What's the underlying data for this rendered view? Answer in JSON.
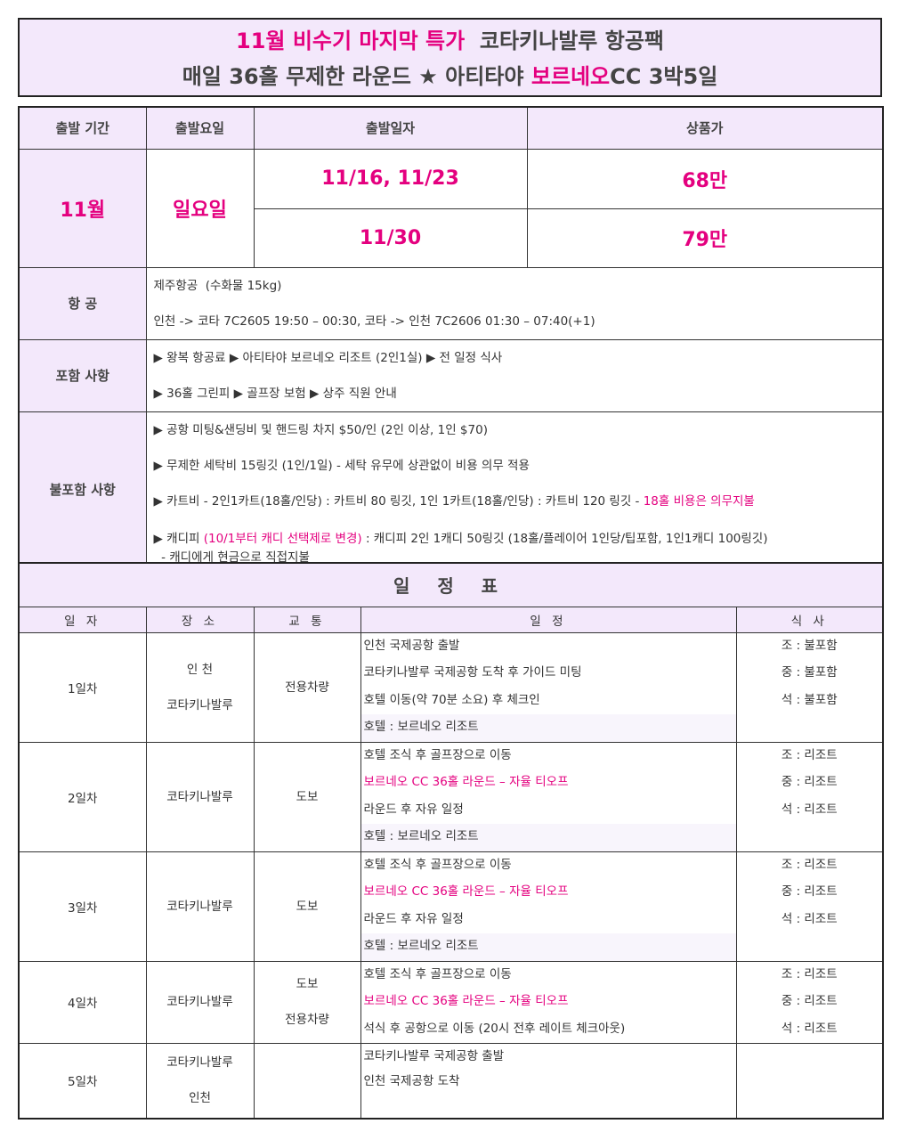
{
  "title": {
    "line1": [
      {
        "t": "11월 비수기 마지막 특가",
        "p": true
      },
      {
        "t": "  코타키나발루 항공팩",
        "p": false
      }
    ],
    "line2": [
      {
        "t": "매일 36홀 무제한 라운드 ★ 아티타야 ",
        "p": false
      },
      {
        "t": "보르네오",
        "p": true
      },
      {
        "t": "CC 3박5일",
        "p": false
      }
    ]
  },
  "headers": [
    "출발 기간",
    "출발요일",
    "출발일자",
    "상품가"
  ],
  "period": "11월",
  "weekday": "일요일",
  "departures": [
    {
      "dates": "11/16, 11/23",
      "price": "68만"
    },
    {
      "dates": "11/30",
      "price": "79만"
    }
  ],
  "sections": [
    {
      "label": "항 공",
      "lines": [
        [
          {
            "t": "제주항공  (수화물 15kg)",
            "p": false
          }
        ],
        [
          {
            "t": "인천 -> 코타 7C2605 19:50 – 00:30, 코타 -> 인천 7C2606 01:30 – 07:40(+1)",
            "p": false
          }
        ]
      ]
    },
    {
      "label": "포함 사항",
      "lines": [
        [
          {
            "t": "▶ 왕복 항공료 ▶ 아티타야 보르네오 리조트 (2인1실) ▶ 전 일정 식사",
            "p": false
          }
        ],
        [
          {
            "t": "▶ 36홀 그린피 ▶ 골프장 보험 ▶ 상주 직원 안내",
            "p": false
          }
        ]
      ]
    },
    {
      "label": "불포함 사항",
      "lines": [
        [
          {
            "t": "▶ 공항 미팅&샌딩비 및 핸드링 차지 $50/인 (2인 이상, 1인 $70)",
            "p": false
          }
        ],
        [
          {
            "t": "▶ 무제한 세탁비 15링깃 (1인/1일) - 세탁 유무에 상관없이 비용 의무 적용",
            "p": false
          }
        ],
        [
          {
            "t": "▶ 카트비 - 2인1카트(18홀/인당) : 카트비 80 링깃, 1인 1카트(18홀/인당) : 카트비 120 링깃 - ",
            "p": false
          },
          {
            "t": "18홀 비용은 의무지불",
            "p": true
          }
        ],
        [
          {
            "t": "▶ 캐디피 ",
            "p": false
          },
          {
            "t": "(10/1부터 캐디 선택제로 변경)",
            "p": true
          },
          {
            "t": " : 캐디피 2인 1캐디 50링깃 (18홀/플레이어 1인당/팁포함, 1인1캐디 100링깃)",
            "p": false
          }
        ],
        [
          {
            "t": "  - 캐디에게 현금으로 직접지불",
            "p": false
          }
        ]
      ]
    }
  ],
  "schedule": {
    "title": "일 정 표",
    "headers": [
      "일 자",
      "장 소",
      "교 통",
      "일   정",
      "식 사"
    ],
    "days": [
      {
        "day": "1일차",
        "places": [
          "인 천",
          "코타키나발루"
        ],
        "transport": [
          "전용차량"
        ],
        "items": [
          {
            "t": "인천 국제공항 출발"
          },
          {
            "t": "코타키나발루 국제공항 도착 후 가이드 미팅"
          },
          {
            "t": "호텔 이동(약 70분 소요) 후 체크인"
          },
          {
            "t": "호텔 : 보르네오 리조트",
            "hl": true
          }
        ],
        "meals": [
          "조 : 불포함",
          "중 : 불포함",
          "석 : 불포함"
        ]
      },
      {
        "day": "2일차",
        "places": [
          "코타키나발루"
        ],
        "transport": [
          "도보"
        ],
        "items": [
          {
            "t": "호텔 조식 후 골프장으로 이동"
          },
          {
            "t": "보르네오 CC 36홀 라운드 – 자율 티오프",
            "p": true
          },
          {
            "t": "라운드 후 자유 일정"
          },
          {
            "t": "호텔 : 보르네오 리조트",
            "hl": true
          }
        ],
        "meals": [
          "조 : 리조트",
          "중 : 리조트",
          "석 : 리조트"
        ]
      },
      {
        "day": "3일차",
        "places": [
          "코타키나발루"
        ],
        "transport": [
          "도보"
        ],
        "items": [
          {
            "t": "호텔 조식 후 골프장으로 이동"
          },
          {
            "t": "보르네오 CC 36홀 라운드 – 자율 티오프",
            "p": true
          },
          {
            "t": "라운드 후 자유 일정"
          },
          {
            "t": "호텔 : 보르네오 리조트",
            "hl": true
          }
        ],
        "meals": [
          "조 : 리조트",
          "중 : 리조트",
          "석 : 리조트"
        ]
      },
      {
        "day": "4일차",
        "places": [
          "코타키나발루"
        ],
        "transport": [
          "도보",
          "전용차량"
        ],
        "items": [
          {
            "t": "호텔 조식 후 골프장으로 이동"
          },
          {
            "t": "보르네오 CC 36홀 라운드 – 자율 티오프",
            "p": true
          },
          {
            "t": "석식 후 공항으로 이동 (20시 전후 레이트 체크아웃)"
          }
        ],
        "meals": [
          "조 : 리조트",
          "중 : 리조트",
          "석 : 리조트"
        ]
      },
      {
        "day": "5일차",
        "places": [
          "코타키나발루",
          "인천"
        ],
        "transport": [],
        "items": [
          {
            "t": "코타키나발루 국제공항 출발"
          },
          {
            "t": "인천 국제공항 도착"
          }
        ],
        "meals": []
      }
    ]
  },
  "colors": {
    "accent": "#e4007f",
    "header_bg": "#f3e8fb"
  }
}
